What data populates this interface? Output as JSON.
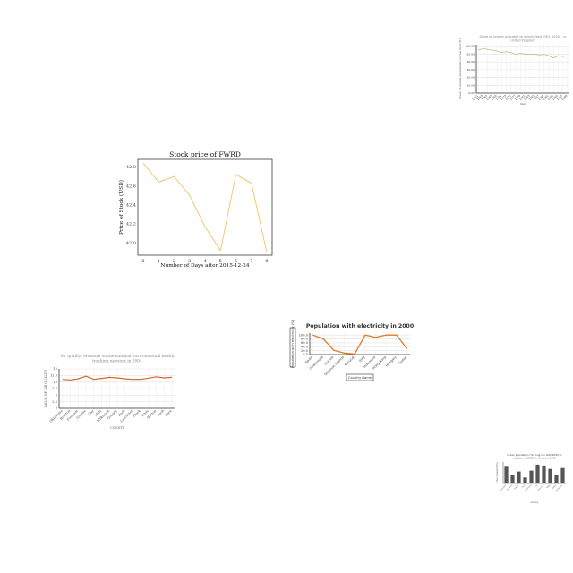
{
  "chart_data": [
    {
      "type": "line",
      "title": "Share of cereals allocated to animal feed (FAO, 2020) - in United Kingdom",
      "xlabel": "Year",
      "ylabel": "Share of cereals allocated to animal feed (%)",
      "x": [
        "1961",
        "1963",
        "1965",
        "1967",
        "1969",
        "1971",
        "1973",
        "1975",
        "1977",
        "1979",
        "1981",
        "1983",
        "1985",
        "1987",
        "1989",
        "1991",
        "1993",
        "1995",
        "1997",
        "1999"
      ],
      "yticks": [
        "0.00",
        "10.00",
        "20.00",
        "30.00",
        "40.00",
        "50.00",
        "60.00"
      ],
      "ylim": [
        0,
        62
      ],
      "grid": true,
      "color": "#c8c09a",
      "series": [
        {
          "values": [
            55,
            57,
            56,
            55,
            54,
            52,
            53,
            52,
            50,
            51,
            50,
            50,
            50,
            49,
            50,
            48,
            45,
            48,
            47,
            48
          ]
        }
      ]
    },
    {
      "type": "line",
      "title": "Stock price of FWRD",
      "xlabel": "Number of Days after 2015-12-24",
      "ylabel": "Price of Stock (USD)",
      "x": [
        0,
        1,
        2,
        3,
        4,
        5,
        6,
        7,
        8
      ],
      "xticks": [
        "0",
        "1",
        "2",
        "3",
        "4",
        "5",
        "6",
        "7",
        "8"
      ],
      "yticks": [
        "42.0",
        "42.2",
        "42.4",
        "42.6",
        "42.8"
      ],
      "ylim": [
        41.87,
        42.88
      ],
      "grid": false,
      "color": "#f0c870",
      "series": [
        {
          "values": [
            42.84,
            42.64,
            42.7,
            42.5,
            42.17,
            41.92,
            42.72,
            42.63,
            41.9
          ]
        }
      ]
    },
    {
      "type": "line",
      "title": "Population with electricity in 2000",
      "xlabel": "Country Name",
      "ylabel": "Population with electricity (%)",
      "categories": [
        "Spain",
        "Guatemala",
        "Guinea",
        "Solomon Islands",
        "Burundi",
        "Italy",
        "Indonesia",
        "Hong Kong",
        "Hungary",
        "Sudan"
      ],
      "yticks": [
        "0.0",
        "20.0",
        "40.0",
        "60.0",
        "80.0",
        "100.0"
      ],
      "ylim": [
        0,
        110
      ],
      "grid": true,
      "color": "#dd7a2a",
      "series": [
        {
          "values": [
            100,
            80,
            22,
            8,
            3,
            100,
            88,
            100,
            100,
            30
          ]
        }
      ]
    },
    {
      "type": "line",
      "title": "Air quality: Measure on the national environmental health tracking network in 2004",
      "xlabel": "COUNTY",
      "ylabel": "VALUE OF AIR QUALITY",
      "categories": [
        "Oklahoma",
        "Braxton",
        "Fremont",
        "Greene",
        "Clay",
        "Mills",
        "Wilkinson",
        "Grundy",
        "Rock",
        "Lancaster",
        "Clark",
        "Knox",
        "Norton",
        "Rush",
        "Gore"
      ],
      "yticks": [
        "0",
        "2.5",
        "5",
        "7.5",
        "10",
        "12.5",
        "15"
      ],
      "ylim": [
        0,
        15
      ],
      "grid": true,
      "color": "#cc6a2e",
      "series": [
        {
          "values": [
            11,
            10.8,
            11.2,
            12.2,
            11,
            11.4,
            11.8,
            11.6,
            11.2,
            11,
            11,
            11.5,
            12,
            11.6,
            11.8
          ]
        }
      ]
    },
    {
      "type": "bar",
      "title": "Urban population (%) long-run with 2050 projections (OWID) in the year 1990",
      "xlabel": "Country",
      "ylabel": "Urban population (%)",
      "categories": [
        "Swaziland",
        "Sri Lanka",
        "Uganda",
        "Togo",
        "Cambodia",
        "Fiji",
        "Mauritius",
        "Malta",
        "Malawi",
        "Zimbabwe"
      ],
      "values": [
        39,
        20,
        28,
        14,
        30,
        44,
        42,
        34,
        20,
        36
      ],
      "ylim": [
        0,
        50
      ],
      "grid": false,
      "color": "#555555"
    }
  ]
}
